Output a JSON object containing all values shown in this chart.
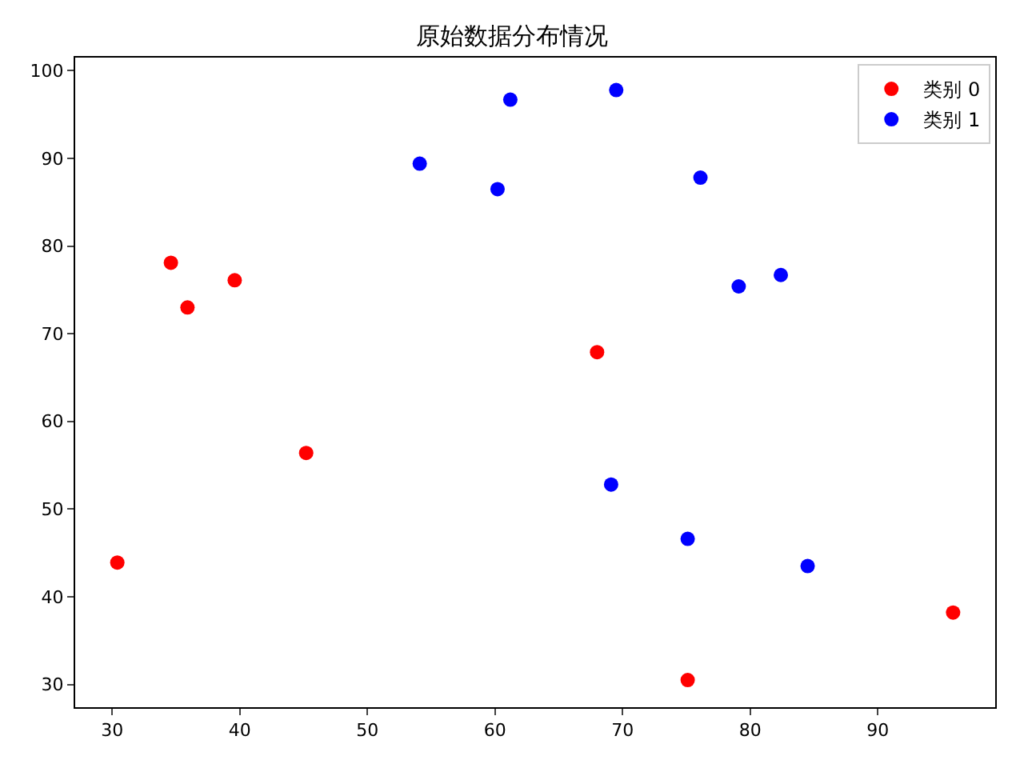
{
  "chart_data": {
    "type": "scatter",
    "title": "原始数据分布情况",
    "series": [
      {
        "name": "类别 0",
        "color": "#ff0000",
        "x": [
          30.4,
          34.6,
          35.9,
          39.6,
          45.2,
          68.0,
          75.1,
          95.9
        ],
        "values": [
          43.9,
          78.1,
          73.0,
          76.1,
          56.4,
          67.9,
          30.5,
          38.2
        ]
      },
      {
        "name": "类别 1",
        "color": "#0000ff",
        "x": [
          54.1,
          60.2,
          61.2,
          69.5,
          69.1,
          76.1,
          75.1,
          79.1,
          82.4,
          84.5
        ],
        "values": [
          89.4,
          86.5,
          96.7,
          97.8,
          52.8,
          87.8,
          46.6,
          75.4,
          76.7,
          43.5
        ]
      }
    ],
    "xlim": [
      27.1,
      99.2
    ],
    "xticks": [
      30,
      40,
      50,
      60,
      70,
      80,
      90
    ],
    "ylim": [
      27.4,
      101.5
    ],
    "yticks": [
      30,
      40,
      50,
      60,
      70,
      80,
      90,
      100
    ],
    "marker": "circle",
    "legend": "top right"
  }
}
